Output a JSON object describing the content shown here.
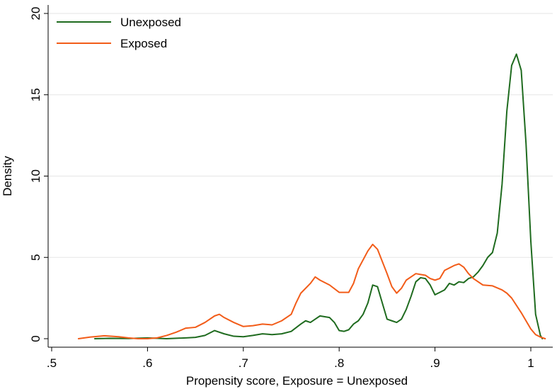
{
  "chart_data": {
    "type": "line",
    "xlabel": "Propensity score, Exposure = Unexposed",
    "ylabel": "Density",
    "xlim": [
      0.5,
      1.02
    ],
    "ylim": [
      0,
      20
    ],
    "x_ticks": [
      0.5,
      0.6,
      0.7,
      0.8,
      0.9,
      1.0
    ],
    "x_tick_labels": [
      ".5",
      ".6",
      ".7",
      ".8",
      ".9",
      "1"
    ],
    "y_ticks": [
      0,
      5,
      10,
      15,
      20
    ],
    "y_tick_labels": [
      "0",
      "5",
      "10",
      "15",
      "20"
    ],
    "grid": "horizontal",
    "legend": "top-left",
    "series": [
      {
        "name": "Unexposed",
        "color": "#1f6b1f",
        "points": [
          [
            0.545,
            0.0
          ],
          [
            0.56,
            0.02
          ],
          [
            0.58,
            0.01
          ],
          [
            0.6,
            0.05
          ],
          [
            0.62,
            0.0
          ],
          [
            0.64,
            0.05
          ],
          [
            0.65,
            0.08
          ],
          [
            0.66,
            0.2
          ],
          [
            0.67,
            0.5
          ],
          [
            0.68,
            0.3
          ],
          [
            0.69,
            0.15
          ],
          [
            0.7,
            0.12
          ],
          [
            0.71,
            0.2
          ],
          [
            0.72,
            0.3
          ],
          [
            0.73,
            0.25
          ],
          [
            0.74,
            0.3
          ],
          [
            0.75,
            0.45
          ],
          [
            0.76,
            0.9
          ],
          [
            0.765,
            1.1
          ],
          [
            0.77,
            1.0
          ],
          [
            0.775,
            1.2
          ],
          [
            0.78,
            1.4
          ],
          [
            0.785,
            1.35
          ],
          [
            0.79,
            1.3
          ],
          [
            0.795,
            1.0
          ],
          [
            0.8,
            0.5
          ],
          [
            0.805,
            0.45
          ],
          [
            0.81,
            0.55
          ],
          [
            0.815,
            0.9
          ],
          [
            0.82,
            1.1
          ],
          [
            0.825,
            1.5
          ],
          [
            0.83,
            2.2
          ],
          [
            0.835,
            3.3
          ],
          [
            0.84,
            3.2
          ],
          [
            0.845,
            2.2
          ],
          [
            0.85,
            1.2
          ],
          [
            0.855,
            1.1
          ],
          [
            0.86,
            1.0
          ],
          [
            0.865,
            1.2
          ],
          [
            0.87,
            1.8
          ],
          [
            0.875,
            2.6
          ],
          [
            0.88,
            3.5
          ],
          [
            0.885,
            3.75
          ],
          [
            0.89,
            3.7
          ],
          [
            0.895,
            3.3
          ],
          [
            0.9,
            2.7
          ],
          [
            0.905,
            2.85
          ],
          [
            0.91,
            3.0
          ],
          [
            0.915,
            3.4
          ],
          [
            0.92,
            3.3
          ],
          [
            0.925,
            3.5
          ],
          [
            0.93,
            3.45
          ],
          [
            0.935,
            3.7
          ],
          [
            0.94,
            3.8
          ],
          [
            0.945,
            4.1
          ],
          [
            0.95,
            4.5
          ],
          [
            0.955,
            5.0
          ],
          [
            0.96,
            5.3
          ],
          [
            0.965,
            6.5
          ],
          [
            0.97,
            9.5
          ],
          [
            0.975,
            14.0
          ],
          [
            0.98,
            16.8
          ],
          [
            0.985,
            17.5
          ],
          [
            0.99,
            16.5
          ],
          [
            0.995,
            12.0
          ],
          [
            1.0,
            6.0
          ],
          [
            1.005,
            1.5
          ],
          [
            1.01,
            0.2
          ],
          [
            1.012,
            0.0
          ]
        ]
      },
      {
        "name": "Exposed",
        "color": "#f25c19",
        "points": [
          [
            0.528,
            0.0
          ],
          [
            0.54,
            0.1
          ],
          [
            0.555,
            0.18
          ],
          [
            0.57,
            0.12
          ],
          [
            0.58,
            0.05
          ],
          [
            0.59,
            0.0
          ],
          [
            0.6,
            0.0
          ],
          [
            0.61,
            0.05
          ],
          [
            0.62,
            0.2
          ],
          [
            0.63,
            0.4
          ],
          [
            0.64,
            0.65
          ],
          [
            0.65,
            0.7
          ],
          [
            0.66,
            1.0
          ],
          [
            0.67,
            1.4
          ],
          [
            0.675,
            1.5
          ],
          [
            0.68,
            1.3
          ],
          [
            0.69,
            1.0
          ],
          [
            0.7,
            0.75
          ],
          [
            0.71,
            0.8
          ],
          [
            0.72,
            0.9
          ],
          [
            0.73,
            0.85
          ],
          [
            0.74,
            1.1
          ],
          [
            0.75,
            1.5
          ],
          [
            0.755,
            2.2
          ],
          [
            0.76,
            2.8
          ],
          [
            0.77,
            3.4
          ],
          [
            0.775,
            3.8
          ],
          [
            0.78,
            3.6
          ],
          [
            0.79,
            3.3
          ],
          [
            0.8,
            2.85
          ],
          [
            0.81,
            2.85
          ],
          [
            0.815,
            3.4
          ],
          [
            0.82,
            4.3
          ],
          [
            0.83,
            5.4
          ],
          [
            0.835,
            5.8
          ],
          [
            0.84,
            5.5
          ],
          [
            0.85,
            4.0
          ],
          [
            0.855,
            3.2
          ],
          [
            0.86,
            2.8
          ],
          [
            0.865,
            3.1
          ],
          [
            0.87,
            3.6
          ],
          [
            0.88,
            4.0
          ],
          [
            0.885,
            3.95
          ],
          [
            0.89,
            3.9
          ],
          [
            0.895,
            3.7
          ],
          [
            0.9,
            3.6
          ],
          [
            0.905,
            3.7
          ],
          [
            0.91,
            4.2
          ],
          [
            0.92,
            4.5
          ],
          [
            0.925,
            4.6
          ],
          [
            0.93,
            4.4
          ],
          [
            0.935,
            4.0
          ],
          [
            0.94,
            3.7
          ],
          [
            0.95,
            3.3
          ],
          [
            0.96,
            3.25
          ],
          [
            0.97,
            3.0
          ],
          [
            0.975,
            2.8
          ],
          [
            0.98,
            2.5
          ],
          [
            0.99,
            1.6
          ],
          [
            1.0,
            0.6
          ],
          [
            1.005,
            0.25
          ],
          [
            1.01,
            0.1
          ],
          [
            1.015,
            0.0
          ]
        ]
      }
    ]
  }
}
